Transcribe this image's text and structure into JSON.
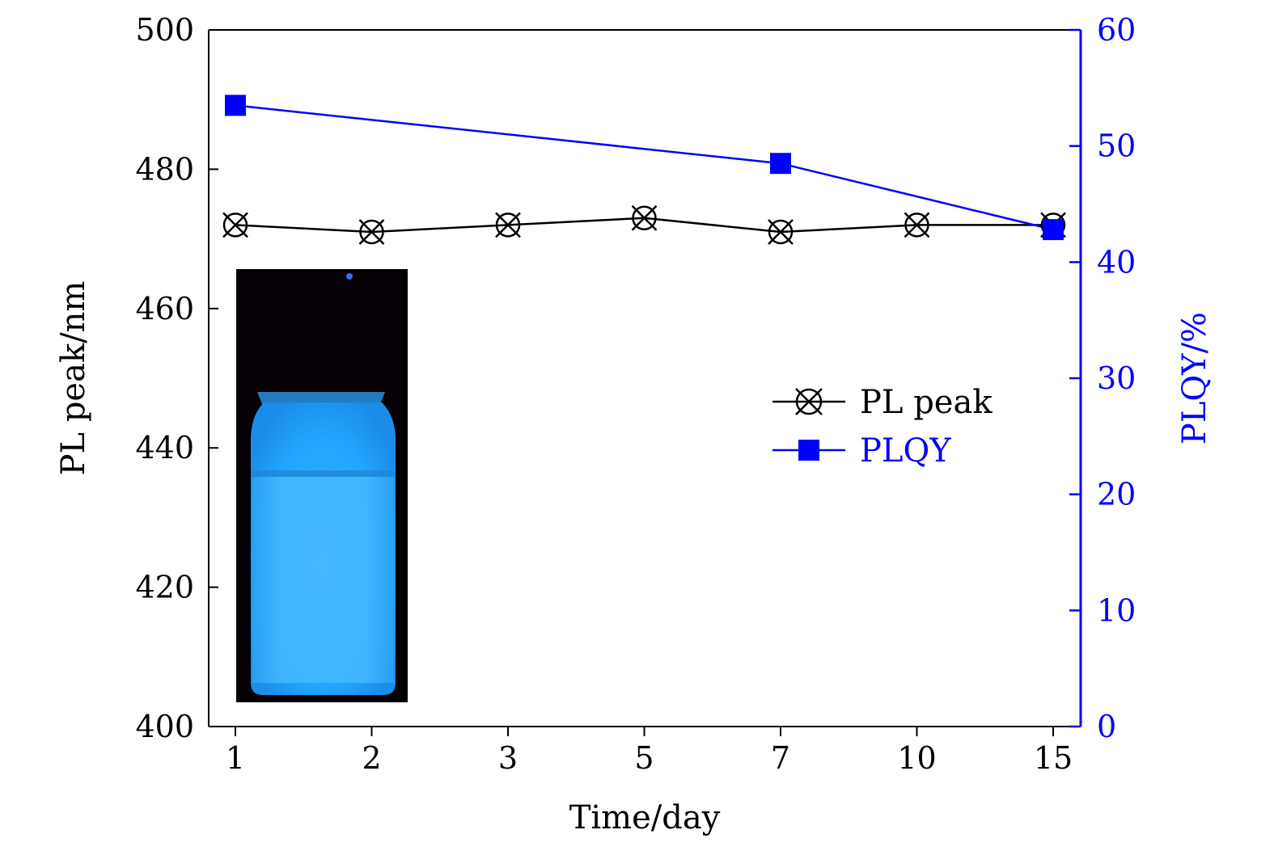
{
  "chart_data": {
    "type": "line",
    "categories": [
      "1",
      "2",
      "3",
      "5",
      "7",
      "10",
      "15"
    ],
    "xlabel": "Time/day",
    "ylabel": "PL peak/nm",
    "y2label": "PLQY/%",
    "ylim": [
      400,
      500
    ],
    "y2lim": [
      0,
      60
    ],
    "yticks": [
      "400",
      "420",
      "440",
      "460",
      "480",
      "500"
    ],
    "y2ticks": [
      "0",
      "10",
      "20",
      "30",
      "40",
      "50",
      "60"
    ],
    "grid": false,
    "legend_position": "right",
    "series": [
      {
        "name": "PL peak",
        "axis": "left",
        "color": "#000000",
        "marker": "crossed-circle",
        "values": [
          472,
          471,
          472,
          473,
          471,
          472,
          472
        ]
      },
      {
        "name": "PLQY",
        "axis": "right",
        "color": "#0000ff",
        "marker": "square",
        "points": [
          {
            "x": "1",
            "y": 53.5
          },
          {
            "x": "7",
            "y": 48.5
          },
          {
            "x": "15",
            "y": 42.8
          }
        ]
      }
    ],
    "inset": {
      "description": "photo of glowing blue vial",
      "glow_color": "#33aaff"
    }
  }
}
